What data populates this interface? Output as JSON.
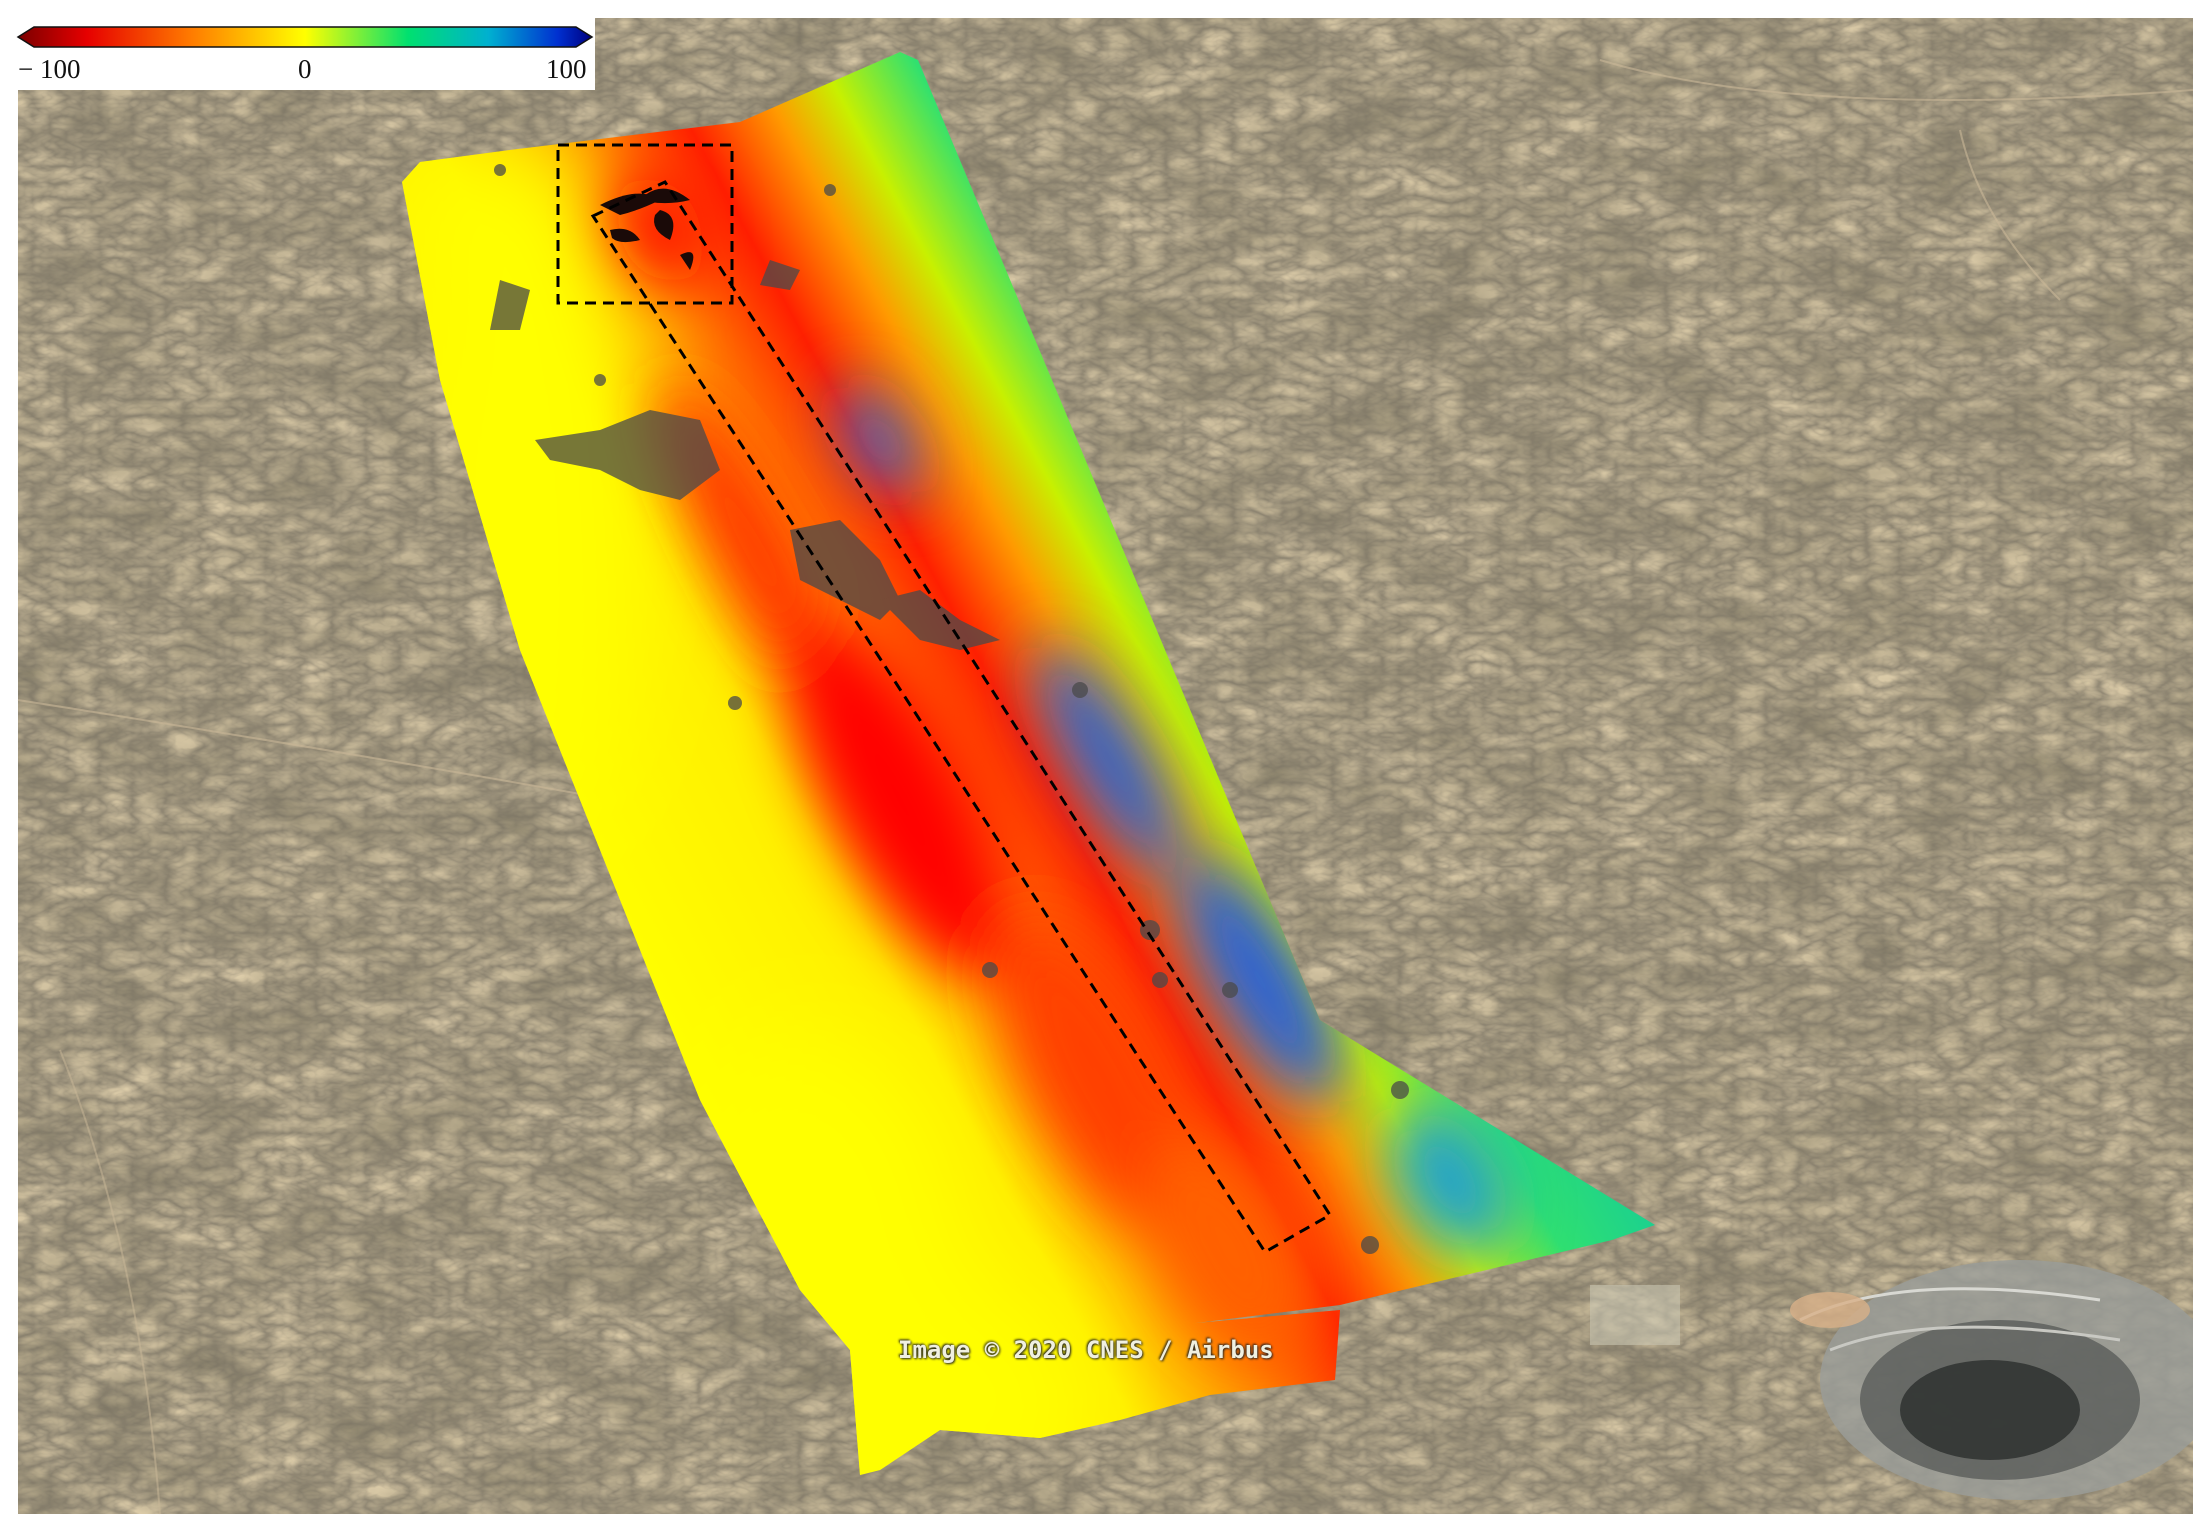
{
  "colorbar": {
    "min_label": "− 100",
    "mid_label": "0",
    "max_label": "100",
    "min_value": -100,
    "mid_value": 0,
    "max_value": 100,
    "colors": [
      "#7a0000",
      "#e60000",
      "#ff6a00",
      "#ffd000",
      "#ffff00",
      "#00e070",
      "#00b0d0",
      "#0030d0",
      "#000080"
    ]
  },
  "credit": "Image © 2020 CNES / Airbus",
  "colors": {
    "terrain": "#8a7357",
    "terrain_dark": "#4e4436",
    "negative_strong": "#e00000",
    "positive_strong": "#1a5fe0",
    "neutral": "#ffff00",
    "box_outline": "#000000"
  }
}
